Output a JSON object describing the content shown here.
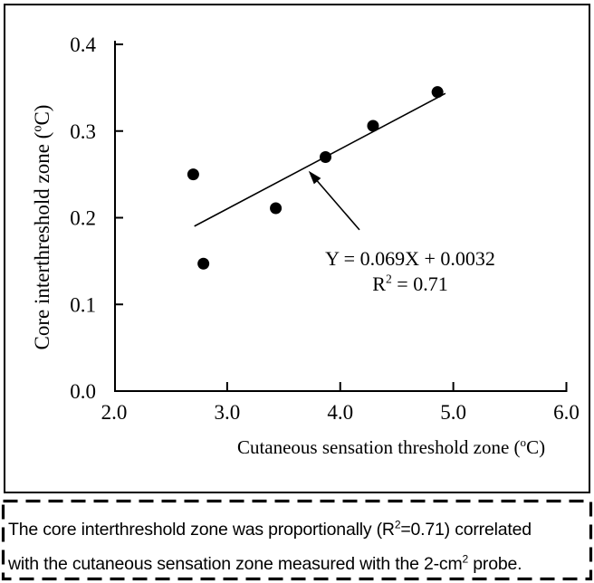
{
  "chart_data": {
    "type": "scatter",
    "title": "",
    "xlabel": "Cutaneous sensation threshold zone (°C)",
    "ylabel": "Core interthreshold zone (°C)",
    "xlim": [
      2.0,
      6.0
    ],
    "ylim": [
      0.0,
      0.4
    ],
    "x_ticks": [
      2.0,
      3.0,
      4.0,
      5.0,
      6.0
    ],
    "x_tick_labels": [
      "2.0",
      "3.0",
      "4.0",
      "5.0",
      "6.0"
    ],
    "y_ticks": [
      0.0,
      0.1,
      0.2,
      0.3,
      0.4
    ],
    "y_tick_labels": [
      "0.0",
      "0.1",
      "0.2",
      "0.3",
      "0.4"
    ],
    "grid": false,
    "legend": "none",
    "marker_color": "#000000",
    "points": [
      {
        "x": 2.7,
        "y": 0.25
      },
      {
        "x": 2.79,
        "y": 0.147
      },
      {
        "x": 3.43,
        "y": 0.211
      },
      {
        "x": 3.87,
        "y": 0.27
      },
      {
        "x": 4.29,
        "y": 0.306
      },
      {
        "x": 4.86,
        "y": 0.345
      }
    ],
    "trendline": {
      "slope": 0.069,
      "intercept": 0.0032,
      "x_start": 2.71,
      "x_end": 4.93
    },
    "annotation": {
      "equation": "Y = 0.069X + 0.0032",
      "r_squared": "R² = 0.71",
      "r2_base": "R",
      "r2_sup": "2",
      "r2_rest": " = 0.71",
      "arrow": {
        "tail_x": 4.17,
        "tail_y": 0.186,
        "tip_x": 3.72,
        "tip_y": 0.254
      }
    }
  },
  "axis_titles": {
    "y": {
      "pre": "Core interthreshold zone (",
      "sup": "o",
      "post": "C)"
    },
    "x": {
      "pre": "Cutaneous sensation threshold zone (",
      "sup": "o",
      "post": "C)"
    }
  },
  "caption": {
    "line1": {
      "pre": "The core interthreshold zone was proportionally (R",
      "sup": "2",
      "post": "=0.71) correlated"
    },
    "line2": {
      "pre": "with the cutaneous sensation zone measured with the 2-cm",
      "sup": "2",
      "post": " probe."
    }
  },
  "colors": {
    "ink": "#000000",
    "background": "#ffffff"
  }
}
